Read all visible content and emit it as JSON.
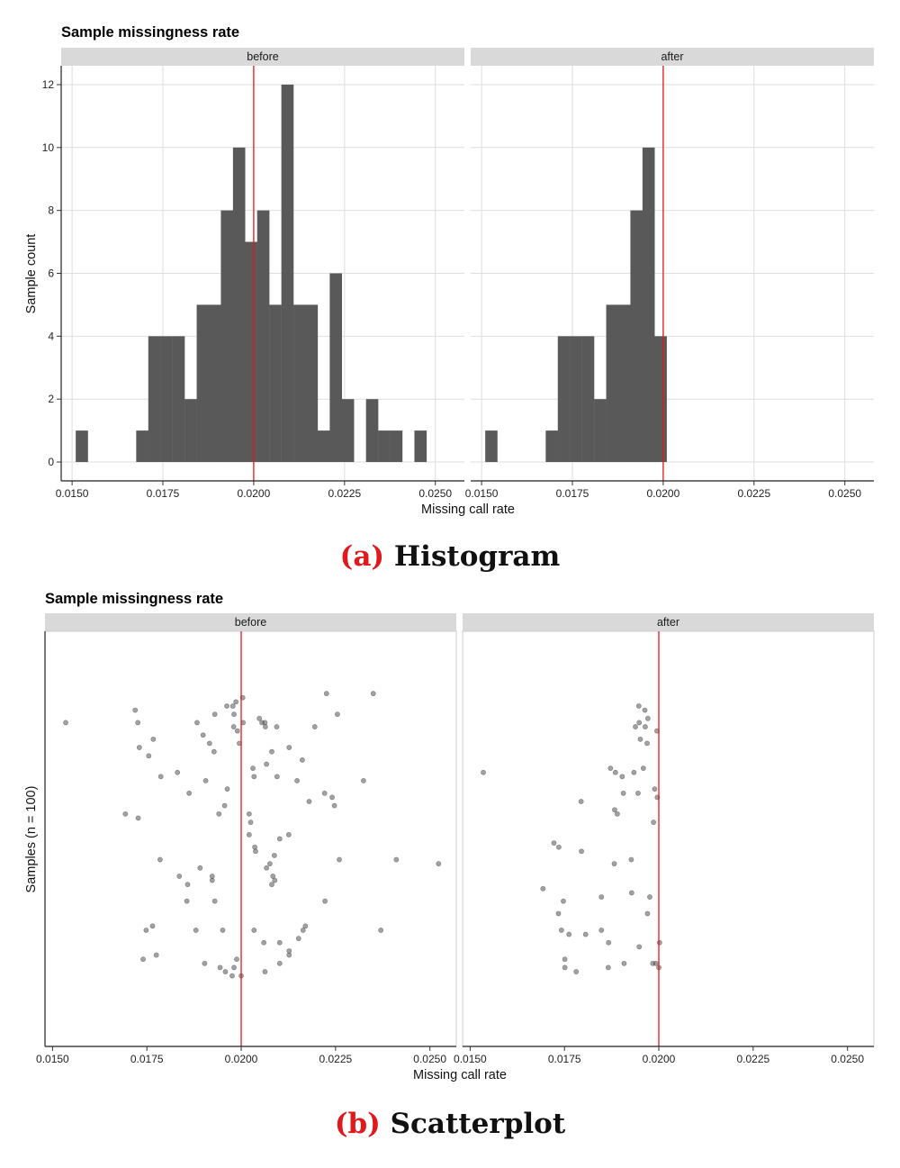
{
  "chart_data": [
    {
      "type": "bar",
      "subtype": "histogram",
      "title": "Sample missingness rate",
      "xlabel": "Missing call rate",
      "ylabel": "Sample count",
      "xlim": [
        0.0147,
        0.0258
      ],
      "ylim": [
        -0.6,
        12.6
      ],
      "x_ticks": [
        "0.0150",
        "0.0175",
        "0.0200",
        "0.0225",
        "0.0250"
      ],
      "x_tick_values": [
        0.015,
        0.0175,
        0.02,
        0.0225,
        0.025
      ],
      "y_ticks": [
        "0",
        "2",
        "4",
        "6",
        "8",
        "10",
        "12"
      ],
      "y_tick_values": [
        0,
        2,
        4,
        6,
        8,
        10,
        12
      ],
      "threshold": 0.02,
      "threshold_color": "#e8161d",
      "bar_color": "#595959",
      "bin_width": 0.000333,
      "bin_start": 0.0151,
      "panels": [
        {
          "name": "before",
          "counts": [
            1,
            0,
            0,
            0,
            0,
            1,
            4,
            4,
            4,
            2,
            5,
            5,
            8,
            10,
            7,
            8,
            5,
            12,
            5,
            5,
            1,
            6,
            2,
            0,
            2,
            1,
            1,
            0,
            1
          ]
        },
        {
          "name": "after",
          "counts": [
            1,
            0,
            0,
            0,
            0,
            1,
            4,
            4,
            4,
            2,
            5,
            5,
            8,
            10,
            4
          ]
        }
      ]
    },
    {
      "type": "scatter",
      "title": "Sample missingness rate",
      "xlabel": "Missing call rate",
      "ylabel": "Samples (n = 100)",
      "xlim": [
        0.0148,
        0.0257
      ],
      "x_ticks": [
        "0.0150",
        "0.0175",
        "0.0200",
        "0.0225",
        "0.0250"
      ],
      "x_tick_values": [
        0.015,
        0.0175,
        0.02,
        0.0225,
        0.025
      ],
      "threshold": 0.02,
      "threshold_color": "#e8161d",
      "point_color": "#555555",
      "y_axis": "jitter (no scale)",
      "panels": [
        {
          "name": "before",
          "points": [
            [
              0.01535,
              0.78
            ],
            [
              0.01719,
              0.81
            ],
            [
              0.01726,
              0.78
            ],
            [
              0.01767,
              0.74
            ],
            [
              0.0173,
              0.72
            ],
            [
              0.01755,
              0.7
            ],
            [
              0.01787,
              0.65
            ],
            [
              0.01831,
              0.66
            ],
            [
              0.01693,
              0.56
            ],
            [
              0.01727,
              0.55
            ],
            [
              0.01862,
              0.61
            ],
            [
              0.01906,
              0.64
            ],
            [
              0.01883,
              0.78
            ],
            [
              0.01899,
              0.75
            ],
            [
              0.0193,
              0.8
            ],
            [
              0.01916,
              0.73
            ],
            [
              0.01928,
              0.71
            ],
            [
              0.01941,
              0.56
            ],
            [
              0.0198,
              0.77
            ],
            [
              0.01986,
              0.83
            ],
            [
              0.0199,
              0.76
            ],
            [
              0.02005,
              0.78
            ],
            [
              0.01962,
              0.82
            ],
            [
              0.01978,
              0.82
            ],
            [
              0.02004,
              0.84
            ],
            [
              0.01995,
              0.73
            ],
            [
              0.02031,
              0.67
            ],
            [
              0.02034,
              0.65
            ],
            [
              0.02055,
              0.78
            ],
            [
              0.02064,
              0.77
            ],
            [
              0.02063,
              0.78
            ],
            [
              0.02067,
              0.68
            ],
            [
              0.02081,
              0.71
            ],
            [
              0.02095,
              0.65
            ],
            [
              0.02094,
              0.77
            ],
            [
              0.02127,
              0.72
            ],
            [
              0.02162,
              0.69
            ],
            [
              0.02195,
              0.77
            ],
            [
              0.02226,
              0.85
            ],
            [
              0.02255,
              0.8
            ],
            [
              0.02324,
              0.64
            ],
            [
              0.0235,
              0.85
            ],
            [
              0.01956,
              0.58
            ],
            [
              0.02021,
              0.56
            ],
            [
              0.01963,
              0.62
            ],
            [
              0.02021,
              0.51
            ],
            [
              0.02025,
              0.54
            ],
            [
              0.02102,
              0.5
            ],
            [
              0.02126,
              0.51
            ],
            [
              0.0218,
              0.59
            ],
            [
              0.02221,
              0.61
            ],
            [
              0.02241,
              0.6
            ],
            [
              0.02247,
              0.58
            ],
            [
              0.0226,
              0.45
            ],
            [
              0.02411,
              0.45
            ],
            [
              0.02523,
              0.44
            ],
            [
              0.01785,
              0.45
            ],
            [
              0.01836,
              0.41
            ],
            [
              0.01858,
              0.39
            ],
            [
              0.01891,
              0.43
            ],
            [
              0.01923,
              0.41
            ],
            [
              0.01923,
              0.4
            ],
            [
              0.0193,
              0.35
            ],
            [
              0.01856,
              0.35
            ],
            [
              0.02036,
              0.48
            ],
            [
              0.02038,
              0.47
            ],
            [
              0.02088,
              0.46
            ],
            [
              0.02076,
              0.44
            ],
            [
              0.02067,
              0.43
            ],
            [
              0.02089,
              0.4
            ],
            [
              0.02084,
              0.41
            ],
            [
              0.02081,
              0.39
            ],
            [
              0.02222,
              0.35
            ],
            [
              0.0237,
              0.28
            ],
            [
              0.0217,
              0.29
            ],
            [
              0.02164,
              0.28
            ],
            [
              0.02102,
              0.25
            ],
            [
              0.0206,
              0.25
            ],
            [
              0.02034,
              0.28
            ],
            [
              0.01951,
              0.28
            ],
            [
              0.01748,
              0.28
            ],
            [
              0.01765,
              0.29
            ],
            [
              0.0188,
              0.28
            ],
            [
              0.0174,
              0.21
            ],
            [
              0.01775,
              0.22
            ],
            [
              0.01903,
              0.2
            ],
            [
              0.01944,
              0.19
            ],
            [
              0.01958,
              0.18
            ],
            [
              0.01981,
              0.19
            ],
            [
              0.01988,
              0.21
            ],
            [
              0.01976,
              0.17
            ],
            [
              0.02,
              0.17
            ],
            [
              0.02063,
              0.18
            ],
            [
              0.02102,
              0.2
            ],
            [
              0.02127,
              0.22
            ],
            [
              0.02127,
              0.23
            ],
            [
              0.02152,
              0.26
            ],
            [
              0.01981,
              0.8
            ],
            [
              0.02048,
              0.79
            ],
            [
              0.02148,
              0.64
            ]
          ]
        },
        {
          "name": "after",
          "points": [
            [
              0.01535,
              0.66
            ],
            [
              0.01947,
              0.82
            ],
            [
              0.01963,
              0.81
            ],
            [
              0.01971,
              0.79
            ],
            [
              0.01948,
              0.78
            ],
            [
              0.01938,
              0.77
            ],
            [
              0.01964,
              0.77
            ],
            [
              0.01995,
              0.76
            ],
            [
              0.01951,
              0.74
            ],
            [
              0.01969,
              0.73
            ],
            [
              0.01885,
              0.66
            ],
            [
              0.01872,
              0.67
            ],
            [
              0.01903,
              0.65
            ],
            [
              0.01934,
              0.66
            ],
            [
              0.01959,
              0.67
            ],
            [
              0.01989,
              0.62
            ],
            [
              0.01996,
              0.6
            ],
            [
              0.01906,
              0.61
            ],
            [
              0.01794,
              0.59
            ],
            [
              0.01883,
              0.57
            ],
            [
              0.0189,
              0.56
            ],
            [
              0.01986,
              0.54
            ],
            [
              0.01722,
              0.49
            ],
            [
              0.01735,
              0.48
            ],
            [
              0.01795,
              0.47
            ],
            [
              0.01927,
              0.45
            ],
            [
              0.01882,
              0.44
            ],
            [
              0.01693,
              0.38
            ],
            [
              0.01747,
              0.35
            ],
            [
              0.01848,
              0.36
            ],
            [
              0.01928,
              0.37
            ],
            [
              0.01976,
              0.36
            ],
            [
              0.01734,
              0.32
            ],
            [
              0.0197,
              0.32
            ],
            [
              0.01742,
              0.28
            ],
            [
              0.01762,
              0.27
            ],
            [
              0.01806,
              0.27
            ],
            [
              0.01848,
              0.28
            ],
            [
              0.01867,
              0.25
            ],
            [
              0.01948,
              0.24
            ],
            [
              0.02002,
              0.25
            ],
            [
              0.01751,
              0.21
            ],
            [
              0.01751,
              0.19
            ],
            [
              0.01781,
              0.18
            ],
            [
              0.01866,
              0.19
            ],
            [
              0.01908,
              0.2
            ],
            [
              0.01984,
              0.2
            ],
            [
              0.01992,
              0.2
            ],
            [
              0.02,
              0.19
            ],
            [
              0.01945,
              0.61
            ]
          ]
        }
      ]
    }
  ],
  "captions": {
    "a_tag": "(a)",
    "a_text": "Histogram",
    "b_tag": "(b)",
    "b_text": "Scatterplot"
  }
}
